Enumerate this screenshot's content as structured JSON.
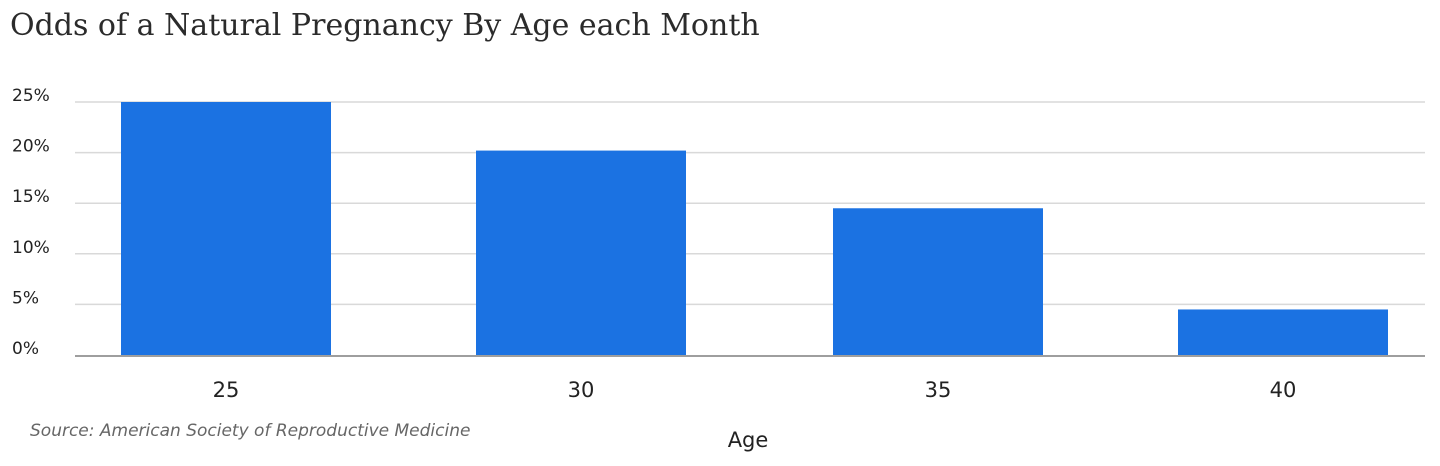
{
  "chart_data": {
    "type": "bar",
    "title": "Odds of a Natural Pregnancy By Age each Month",
    "xlabel": "Age",
    "ylabel": "",
    "categories": [
      "25",
      "30",
      "35",
      "40"
    ],
    "values": [
      25,
      20.2,
      14.5,
      4.5
    ],
    "ylim": [
      0,
      25
    ],
    "yticks": [
      0,
      5,
      10,
      15,
      20,
      25
    ],
    "ytick_labels": [
      "0%",
      "5%",
      "10%",
      "15%",
      "20%",
      "25%"
    ],
    "grid": true,
    "legend": "none",
    "bar_color": "#1b72e2",
    "grid_color": "#d9d9d9",
    "axis_color": "#9e9e9e"
  },
  "source": "Source: American Society of Reproductive Medicine"
}
